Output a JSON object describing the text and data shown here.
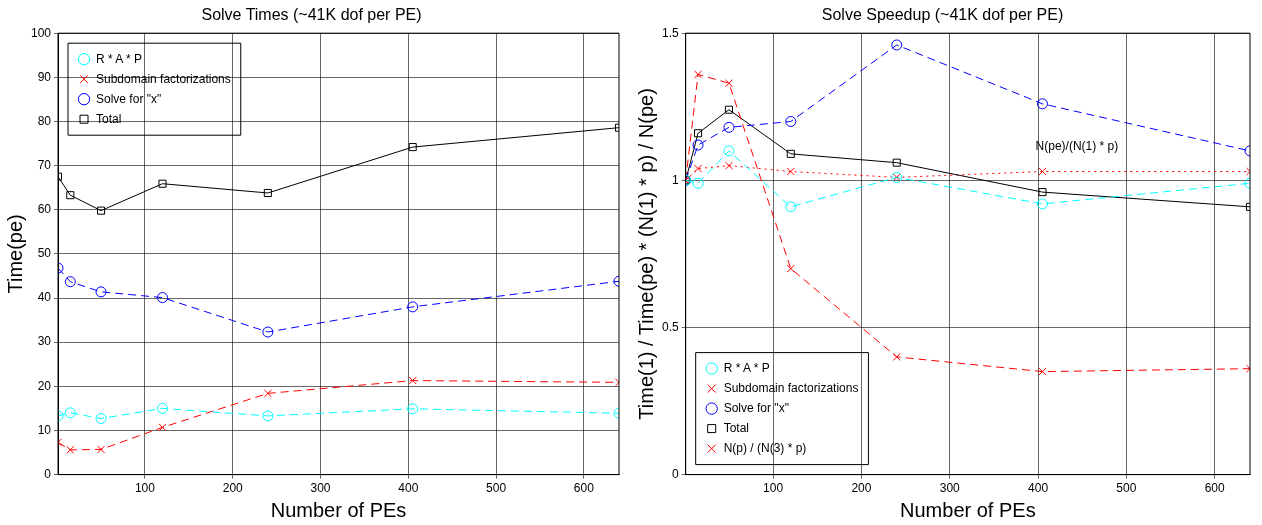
{
  "chart_data": [
    {
      "type": "line",
      "title": "Solve Times (~41K dof per PE)",
      "xlabel": "Number of PEs",
      "ylabel": "Time(pe)",
      "x": [
        1,
        15,
        50,
        120,
        240,
        405,
        640
      ],
      "xlim": [
        1,
        640
      ],
      "xticks": [
        100,
        200,
        300,
        400,
        500,
        600
      ],
      "ylim": [
        0,
        100
      ],
      "yticks": [
        0,
        10,
        20,
        30,
        40,
        50,
        60,
        70,
        80,
        90,
        100
      ],
      "grid": true,
      "legend": "top left",
      "series": [
        {
          "name": "R * A * P",
          "color": "#00ffff",
          "marker": "circle",
          "line_style": "dashed",
          "values": [
            13.3,
            14.0,
            12.7,
            15.0,
            13.3,
            14.9,
            13.9
          ]
        },
        {
          "name": "Subdomain factorizations",
          "color": "#ff0000",
          "marker": "cross",
          "line_style": "dashed",
          "values": [
            7.3,
            5.6,
            5.7,
            10.7,
            18.4,
            21.3,
            20.9
          ]
        },
        {
          "name": "Solve for \"x\"",
          "color": "#0000ff",
          "marker": "circle",
          "line_style": "dashed",
          "values": [
            46.8,
            43.7,
            41.4,
            40.1,
            32.3,
            38.0,
            43.8
          ]
        },
        {
          "name": "Total",
          "color": "#000000",
          "marker": "square",
          "line_style": "solid",
          "values": [
            67.5,
            63.3,
            59.8,
            65.9,
            63.8,
            74.2,
            78.6
          ]
        }
      ]
    },
    {
      "type": "line",
      "title": "Solve Speedup (~41K dof per PE)",
      "xlabel": "Number of PEs",
      "ylabel": "Time(1) / Time(pe) * (N(1) * p) / N(pe)",
      "x": [
        1,
        15,
        50,
        120,
        240,
        405,
        640
      ],
      "xlim": [
        1,
        640
      ],
      "xticks": [
        100,
        200,
        300,
        400,
        500,
        600
      ],
      "ylim": [
        0,
        1.5
      ],
      "yticks": [
        0,
        0.5,
        1,
        1.5
      ],
      "grid": true,
      "legend": "bottom left",
      "annotations": [
        "N(pe)/(N(1) * p)"
      ],
      "series": [
        {
          "name": "R * A * P",
          "color": "#00ffff",
          "marker": "circle",
          "line_style": "dashed",
          "values": [
            1,
            0.99,
            1.1,
            0.91,
            1.01,
            0.92,
            0.99
          ]
        },
        {
          "name": "Subdomain factorizations",
          "color": "#ff0000",
          "marker": "cross",
          "line_style": "dashed",
          "values": [
            1,
            1.36,
            1.33,
            0.7,
            0.4,
            0.35,
            0.36
          ]
        },
        {
          "name": "Solve for \"x\"",
          "color": "#0000ff",
          "marker": "circle",
          "line_style": "dashed",
          "values": [
            1,
            1.12,
            1.18,
            1.2,
            1.46,
            1.26,
            1.1
          ]
        },
        {
          "name": "Total",
          "color": "#000000",
          "marker": "square",
          "line_style": "solid",
          "values": [
            1,
            1.16,
            1.24,
            1.09,
            1.06,
            0.96,
            0.91
          ]
        },
        {
          "name": "N(p) / (N(3) * p)",
          "color": "#ff0000",
          "marker": "cross",
          "line_style": "dotted",
          "values": [
            1,
            1.04,
            1.05,
            1.03,
            1.01,
            1.03,
            1.03
          ]
        }
      ]
    }
  ]
}
